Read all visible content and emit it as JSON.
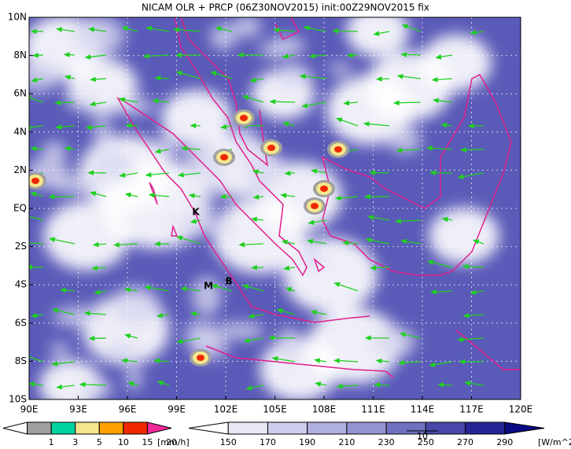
{
  "header": {
    "title": "NICAM OLR + PRCP (06Z30NOV2015) init:00Z29NOV2015 fix"
  },
  "map": {
    "lat_labels": [
      "10N",
      "8N",
      "6N",
      "4N",
      "2N",
      "EQ",
      "2S",
      "4S",
      "6S",
      "8S",
      "10S"
    ],
    "lon_labels": [
      "90E",
      "93E",
      "96E",
      "99E",
      "102E",
      "105E",
      "108E",
      "111E",
      "114E",
      "117E",
      "120E"
    ],
    "markers": [
      "K",
      "M",
      "B"
    ],
    "vector_reference": "10"
  },
  "precip_colorbar": {
    "labels": [
      "1",
      "3",
      "5",
      "10",
      "15",
      "20"
    ],
    "unit": "[mm/h]",
    "colors": [
      "#ffffff",
      "#a0a0a0",
      "#00d2a0",
      "#f5e68c",
      "#ffa000",
      "#f02800",
      "#f0289b"
    ]
  },
  "olr_colorbar": {
    "labels": [
      "150",
      "170",
      "190",
      "210",
      "230",
      "250",
      "270",
      "290"
    ],
    "unit": "[W/m^2]",
    "colors": [
      "#ffffff",
      "#e8e8f6",
      "#ccccec",
      "#b0b0e0",
      "#9494d2",
      "#7070c0",
      "#4848aa",
      "#242496",
      "#0a0a82"
    ]
  }
}
